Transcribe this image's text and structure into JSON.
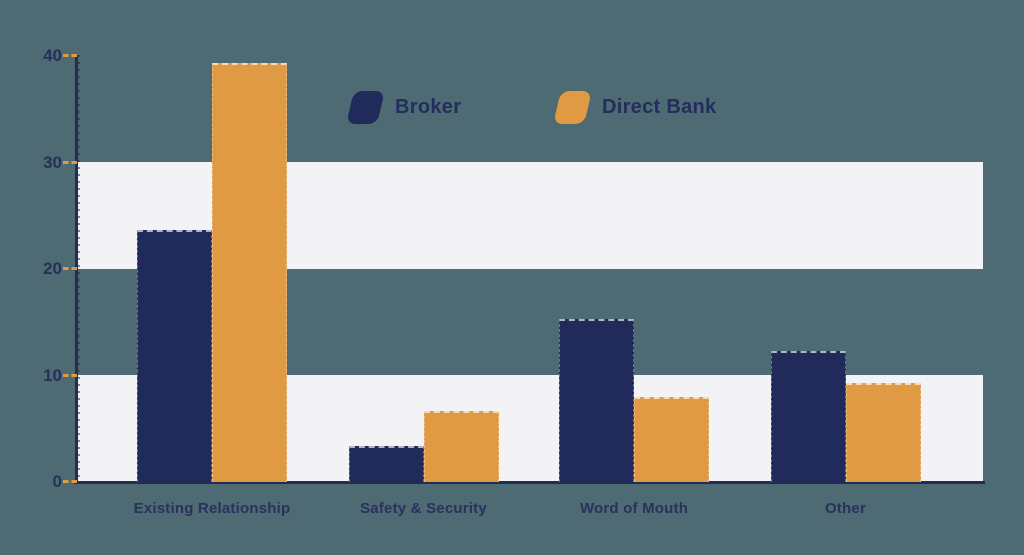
{
  "chart_data": {
    "type": "bar",
    "title": "",
    "categories": [
      "Existing Relationship",
      "Safety & Security",
      "Word of Mouth",
      "Other"
    ],
    "series": [
      {
        "name": "Broker",
        "color": "#202b5c",
        "values": [
          23.7,
          3.4,
          15.3,
          12.3
        ]
      },
      {
        "name": "Direct Bank",
        "color": "#e09a43",
        "values": [
          39.3,
          6.7,
          8.0,
          9.3
        ]
      }
    ],
    "xlabel": "",
    "ylabel": "",
    "ylim": [
      0,
      40
    ],
    "yticks": [
      40,
      30,
      20,
      10,
      0
    ],
    "grid": "alternating horizontal light bands for ranges 0-10 and 20-30",
    "legend_position": "top-center",
    "colors": {
      "background": "#4e6a73",
      "band": "#f3f2f4",
      "axis": "#232d52",
      "tick_dash": "#df9a42",
      "text": "#26305a"
    }
  },
  "legend": {
    "items": [
      {
        "label": "Broker",
        "color": "#202b5c"
      },
      {
        "label": "Direct Bank",
        "color": "#e09a43"
      }
    ]
  },
  "y_axis": {
    "tick_labels": [
      "40",
      "30",
      "20",
      "10",
      "0"
    ]
  },
  "x_axis": {
    "labels": [
      "Existing Relationship",
      "Safety & Security",
      "Word of Mouth",
      "Other"
    ]
  }
}
